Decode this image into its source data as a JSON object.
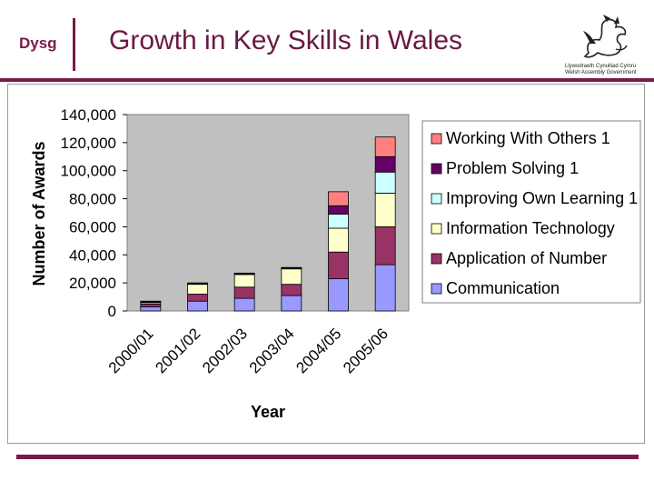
{
  "header": {
    "logo_left_text": "Dysg",
    "title": "Growth in Key Skills in Wales",
    "logo_right_caption_line1": "Llywodraeth Cynulliad Cymru",
    "logo_right_caption_line2": "Welsh Assembly Government"
  },
  "chart_data": {
    "type": "bar",
    "stacked": true,
    "title": "",
    "xlabel": "Year",
    "ylabel": "Number of Awards",
    "categories": [
      "2000/01",
      "2001/02",
      "2002/03",
      "2003/04",
      "2004/05",
      "2005/06"
    ],
    "ylim": [
      0,
      140000
    ],
    "yticks": [
      0,
      20000,
      40000,
      60000,
      80000,
      100000,
      120000,
      140000
    ],
    "ytick_labels": [
      "0",
      "20,000",
      "40,000",
      "60,000",
      "80,000",
      "100,000",
      "120,000",
      "140,000"
    ],
    "grid": false,
    "plot_background": "#c0c0c0",
    "legend_position": "right",
    "series": [
      {
        "name": "Communication",
        "color": "#9999ff",
        "values": [
          3000,
          7000,
          9000,
          11000,
          23000,
          33000
        ]
      },
      {
        "name": "Application of Number",
        "color": "#993366",
        "values": [
          2000,
          5000,
          8000,
          8000,
          19000,
          27000
        ]
      },
      {
        "name": "Information Technology",
        "color": "#ffffcc",
        "values": [
          1000,
          7000,
          9000,
          11000,
          17000,
          24000
        ]
      },
      {
        "name": "Improving Own Learning 1",
        "color": "#ccffff",
        "values": [
          500,
          500,
          500,
          500,
          10000,
          15000
        ]
      },
      {
        "name": "Problem Solving 1",
        "color": "#660066",
        "values": [
          300,
          300,
          300,
          300,
          6000,
          11000
        ]
      },
      {
        "name": "Working With Others 1",
        "color": "#ff8080",
        "values": [
          200,
          200,
          200,
          200,
          10000,
          14000
        ]
      }
    ]
  }
}
